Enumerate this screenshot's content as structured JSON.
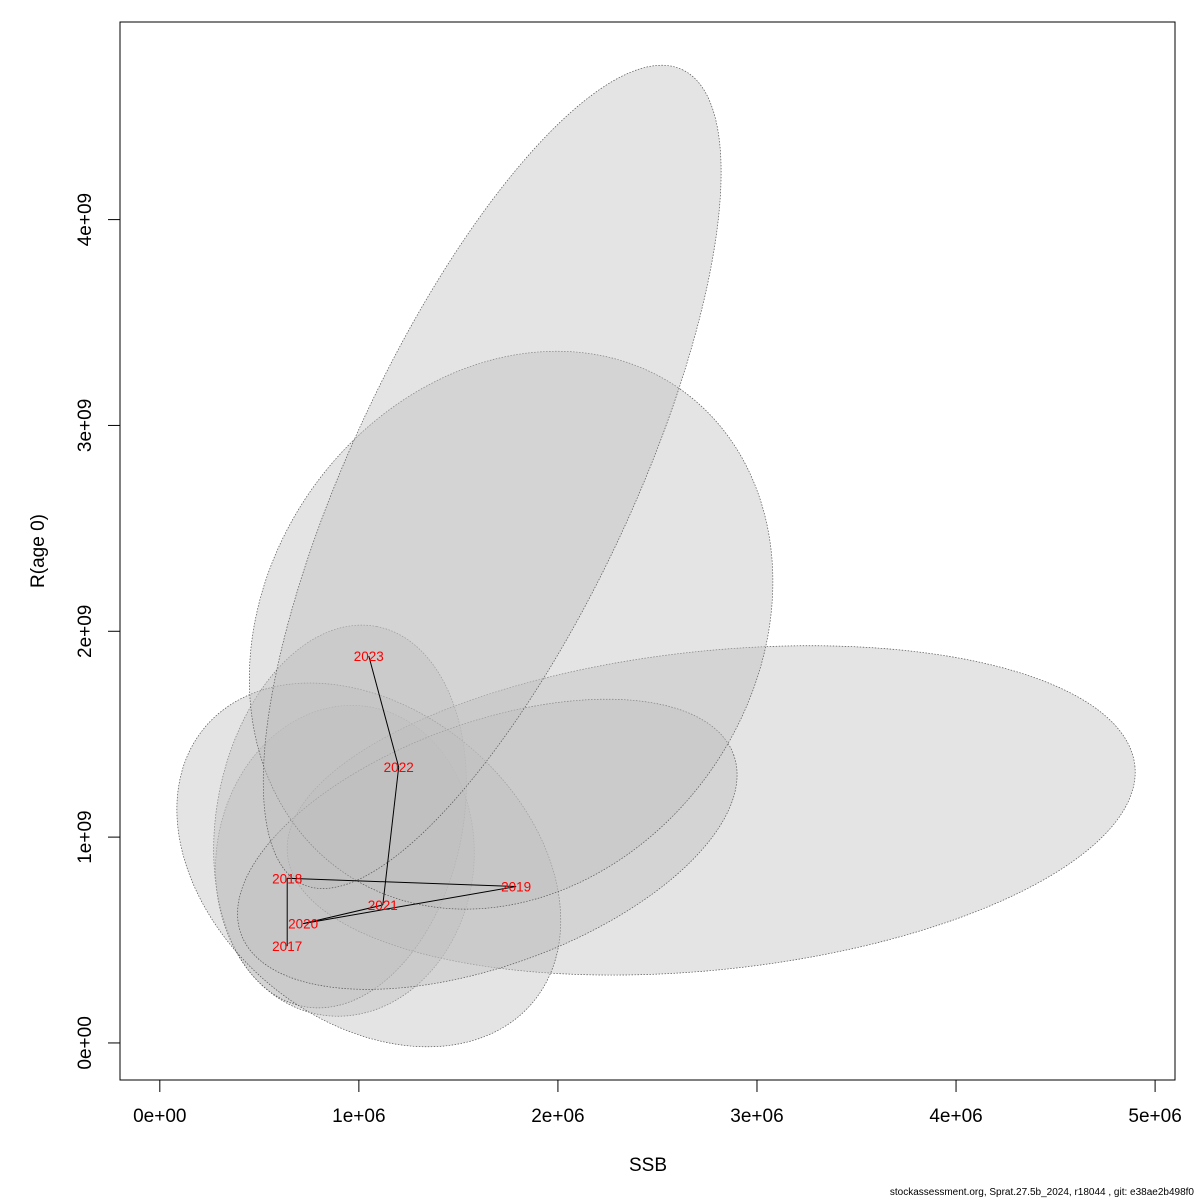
{
  "chart_data": {
    "type": "scatter",
    "title": "",
    "xlabel": "SSB",
    "ylabel": "R(age 0)",
    "xlim": [
      -200000,
      5100000
    ],
    "ylim": [
      -180000000,
      4960000000
    ],
    "x_ticks": [
      {
        "value": 0,
        "label": "0e+00"
      },
      {
        "value": 1000000,
        "label": "1e+06"
      },
      {
        "value": 2000000,
        "label": "2e+06"
      },
      {
        "value": 3000000,
        "label": "3e+06"
      },
      {
        "value": 4000000,
        "label": "4e+06"
      },
      {
        "value": 5000000,
        "label": "5e+06"
      }
    ],
    "y_ticks": [
      {
        "value": 0,
        "label": "0e+00"
      },
      {
        "value": 1000000000,
        "label": "1e+09"
      },
      {
        "value": 2000000000,
        "label": "2e+09"
      },
      {
        "value": 3000000000,
        "label": "3e+09"
      },
      {
        "value": 4000000000,
        "label": "4e+09"
      }
    ],
    "grid": false,
    "points": [
      {
        "year": "2017",
        "ssb": 640000,
        "r": 470000000
      },
      {
        "year": "2018",
        "ssb": 640000,
        "r": 800000000
      },
      {
        "year": "2019",
        "ssb": 1790000,
        "r": 760000000
      },
      {
        "year": "2020",
        "ssb": 720000,
        "r": 580000000
      },
      {
        "year": "2021",
        "ssb": 1120000,
        "r": 670000000
      },
      {
        "year": "2022",
        "ssb": 1200000,
        "r": 1340000000
      },
      {
        "year": "2023",
        "ssb": 1050000,
        "r": 1880000000
      }
    ],
    "confidence_regions": [
      {
        "year": "2017",
        "cx": 870000,
        "cy": 580000000,
        "rx": 240000,
        "ry": 1200000000,
        "angle": -82,
        "ssb_range": [
          280000,
          1580000
        ],
        "r_range": [
          130000000,
          1640000000
        ]
      },
      {
        "year": "2018",
        "cx": 870000,
        "cy": 1150000000,
        "rx": 300000,
        "ry": 1250000000,
        "angle": -79,
        "ssb_range": [
          270000,
          1540000
        ],
        "r_range": [
          170000000,
          2030000000
        ]
      },
      {
        "year": "2019",
        "cx": 2500000,
        "cy": 1100000000,
        "rx": 2250000,
        "ry": 380000000,
        "angle": -6,
        "ssb_range": [
          640000,
          4900000
        ],
        "r_range": [
          330000000,
          1930000000
        ]
      },
      {
        "year": "2020",
        "cx": 900000,
        "cy": 870000000,
        "rx": 320000,
        "ry": 1100000000,
        "angle": -50,
        "ssb_range": [
          270000,
          1830000
        ],
        "r_range": [
          270000000,
          1460000000
        ]
      },
      {
        "year": "2021",
        "cx": 1600000,
        "cy": 950000000,
        "rx": 1300000,
        "ry": 300000000,
        "angle": -20,
        "ssb_range": [
          390000,
          2900000
        ],
        "r_range": [
          260000000,
          1670000000
        ]
      },
      {
        "year": "2022",
        "cx": 1900000,
        "cy": 1810000000,
        "rx": 2000000,
        "ry": 280000000,
        "angle": -55,
        "ssb_range": [
          450000,
          3080000
        ],
        "r_range": [
          650000000,
          3360000000
        ]
      },
      {
        "year": "2023",
        "cx": 1600000,
        "cy": 2350000000,
        "rx": 2500000,
        "ry": 250000000,
        "angle": -65,
        "ssb_range": [
          520000,
          2820000
        ],
        "r_range": [
          750000000,
          4750000000
        ]
      }
    ]
  },
  "footer": "stockassessment.org, Sprat.27.5b_2024, r18044 , git: e38ae2b498f0",
  "colors": {
    "ellipse_fill": "#bebebe",
    "ellipse_stroke": "#555555",
    "label": "#ff0000",
    "line": "#000000"
  }
}
